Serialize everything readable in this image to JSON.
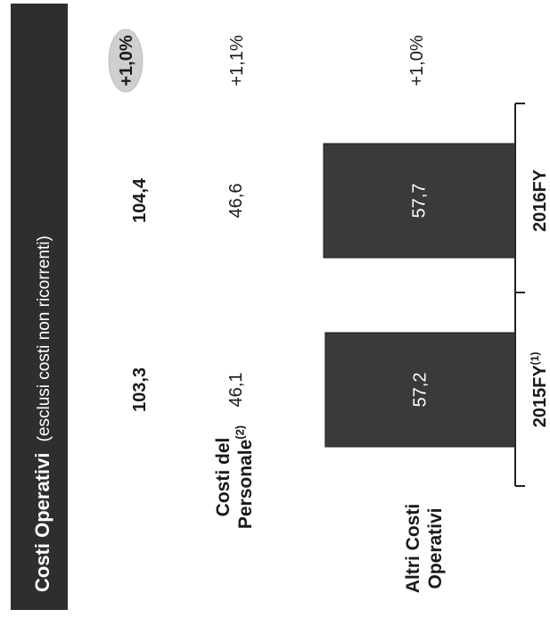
{
  "title": {
    "bold": "Costi  Operativi",
    "rest": "(esclusi costi non ricorrenti)"
  },
  "chart_data": {
    "type": "bar",
    "orientation": "rotated-90-ccw",
    "categories": [
      "2015FY",
      "2016FY"
    ],
    "category_labels": [
      {
        "text": "2015FY",
        "sup": "(1)"
      },
      {
        "text": "2016FY",
        "sup": ""
      }
    ],
    "series": [
      {
        "name_lines": [
          "Altri Costi",
          "Operativi"
        ],
        "name_sup": "",
        "values": [
          57.2,
          57.7
        ],
        "value_labels": [
          "57,2",
          "57,7"
        ],
        "color": "#3a3a3a"
      }
    ],
    "rows": [
      {
        "name_lines": [
          "Costi del",
          "Personale"
        ],
        "name_sup": "(2)",
        "values": [
          "46,1",
          "46,6"
        ],
        "change": "+1,1%"
      }
    ],
    "totals": {
      "values": [
        "103,3",
        "104,4"
      ],
      "change": "+1,0%"
    },
    "series_change": "+1,0%",
    "colors": {
      "header_bg": "#2e2e2e",
      "bar": "#3a3a3a",
      "highlight": "#cfcfcf",
      "text": "#1a1a1a"
    }
  }
}
